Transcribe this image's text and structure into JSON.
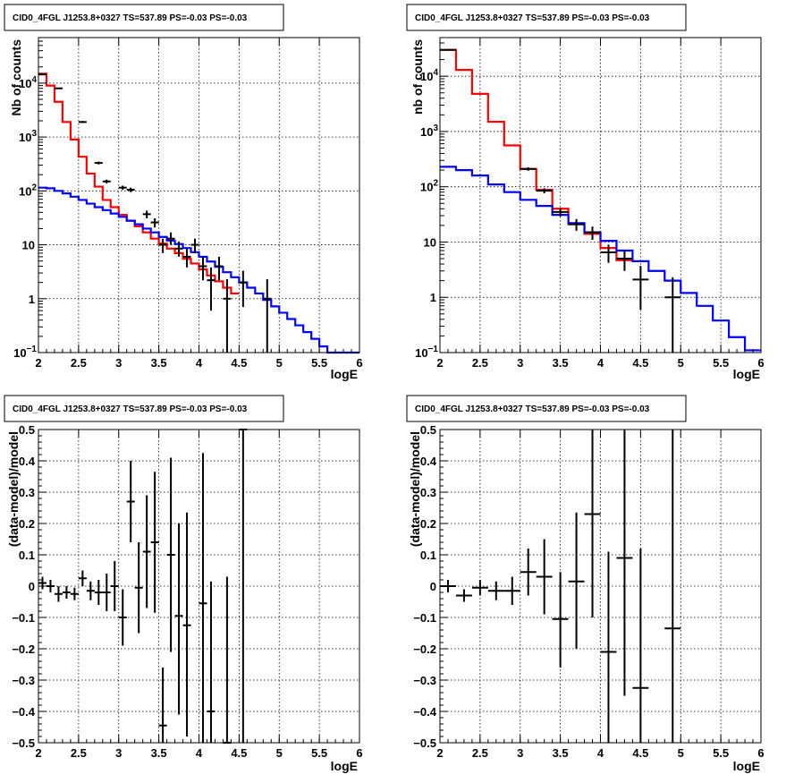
{
  "colors": {
    "total_model": "#ff0000",
    "source_model": "#0000ff",
    "data": "#000000"
  },
  "chart_data": [
    {
      "id": "p1",
      "type": "line",
      "title": "CID0_4FGL J1253.8+0327 TS=537.89 PS=-0.03 PS=-0.03",
      "xlabel": "logE",
      "ylabel": "Nb of counts",
      "xlim": [
        2,
        6
      ],
      "ylim": [
        0.1,
        70000
      ],
      "log_y": true,
      "grid": true,
      "xticks": [
        "2",
        "2.5",
        "3",
        "3.5",
        "4",
        "4.5",
        "5",
        "5.5",
        "6"
      ],
      "yticks": [
        {
          "value": 0.1,
          "base": "10",
          "exp": "−1"
        },
        {
          "value": 1,
          "label": "1"
        },
        {
          "value": 10,
          "label": "10"
        },
        {
          "value": 100,
          "base": "10",
          "exp": "2"
        },
        {
          "value": 1000,
          "base": "10",
          "exp": "3"
        },
        {
          "value": 10000,
          "base": "10",
          "exp": "4"
        }
      ],
      "series": [
        {
          "role": "total_model",
          "color": "#ff0000",
          "style": "step",
          "edges": [
            2.0,
            2.1,
            2.2,
            2.3,
            2.4,
            2.5,
            2.6,
            2.7,
            2.8,
            2.9,
            3.0,
            3.1,
            3.2,
            3.3,
            3.4,
            3.5,
            3.6,
            3.7,
            3.8,
            3.9,
            4.0,
            4.1,
            4.2,
            4.3,
            4.4,
            4.5
          ],
          "values": [
            15000,
            9000,
            4500,
            1900,
            900,
            430,
            210,
            120,
            68,
            50,
            36,
            28,
            22,
            17,
            13,
            10.5,
            8.5,
            7,
            5.5,
            4.5,
            3.5,
            2.7,
            2.1,
            1.6,
            1.25
          ]
        },
        {
          "role": "source_model",
          "color": "#0000ff",
          "style": "step",
          "edges": [
            2.0,
            2.1,
            2.2,
            2.3,
            2.4,
            2.5,
            2.6,
            2.7,
            2.8,
            2.9,
            3.0,
            3.1,
            3.2,
            3.3,
            3.4,
            3.5,
            3.6,
            3.7,
            3.8,
            3.9,
            4.0,
            4.1,
            4.2,
            4.3,
            4.4,
            4.5,
            4.6,
            4.7,
            4.8,
            4.9,
            5.0,
            5.1,
            5.2,
            5.3,
            5.4,
            5.5,
            5.6,
            5.7,
            5.8,
            5.9,
            6.0
          ],
          "values": [
            115,
            112,
            100,
            90,
            78,
            68,
            58,
            50,
            44,
            38,
            33,
            28,
            24,
            20,
            17,
            14,
            12,
            10.3,
            8.7,
            7.3,
            6.0,
            4.9,
            3.9,
            3.1,
            2.5,
            2.0,
            1.6,
            1.25,
            0.95,
            0.72,
            0.55,
            0.42,
            0.32,
            0.24,
            0.18,
            0.13,
            0.1,
            0.1,
            0.1,
            0.1
          ]
        }
      ],
      "points": [
        {
          "x": 2.05,
          "y": 14500,
          "xerr": 0.05,
          "lo": 14200,
          "hi": 14800
        },
        {
          "x": 2.25,
          "y": 8000,
          "xerr": 0.05,
          "lo": 7800,
          "hi": 8200
        },
        {
          "x": 2.55,
          "y": 1900,
          "xerr": 0.05,
          "lo": 1820,
          "hi": 1980
        },
        {
          "x": 2.75,
          "y": 330,
          "xerr": 0.05,
          "lo": 310,
          "hi": 350
        },
        {
          "x": 2.85,
          "y": 150,
          "xerr": 0.05,
          "lo": 138,
          "hi": 162
        },
        {
          "x": 3.05,
          "y": 115,
          "xerr": 0.05,
          "lo": 105,
          "hi": 125
        },
        {
          "x": 3.15,
          "y": 105,
          "xerr": 0.05,
          "lo": 95,
          "hi": 115
        },
        {
          "x": 3.35,
          "y": 37,
          "xerr": 0.05,
          "lo": 31,
          "hi": 43
        },
        {
          "x": 3.45,
          "y": 26,
          "xerr": 0.05,
          "lo": 21,
          "hi": 31
        },
        {
          "x": 3.55,
          "y": 10,
          "xerr": 0.05,
          "lo": 7,
          "hi": 13
        },
        {
          "x": 3.65,
          "y": 13,
          "xerr": 0.05,
          "lo": 10,
          "hi": 17
        },
        {
          "x": 3.75,
          "y": 8.5,
          "xerr": 0.05,
          "lo": 6,
          "hi": 11.5
        },
        {
          "x": 3.85,
          "y": 6,
          "xerr": 0.05,
          "lo": 3.8,
          "hi": 8.5
        },
        {
          "x": 3.95,
          "y": 10,
          "xerr": 0.05,
          "lo": 7,
          "hi": 13
        },
        {
          "x": 4.05,
          "y": 4,
          "xerr": 0.05,
          "lo": 2.2,
          "hi": 6
        },
        {
          "x": 4.15,
          "y": 2.2,
          "xerr": 0.05,
          "lo": 0.6,
          "hi": 3.8
        },
        {
          "x": 4.25,
          "y": 4,
          "xerr": 0.05,
          "lo": 2.2,
          "hi": 6
        },
        {
          "x": 4.35,
          "y": 1,
          "xerr": 0.05,
          "lo": 0.1,
          "hi": 2.3
        },
        {
          "x": 4.55,
          "y": 2,
          "xerr": 0.05,
          "lo": 0.7,
          "hi": 3.3
        },
        {
          "x": 4.85,
          "y": 1,
          "xerr": 0.05,
          "lo": 0.1,
          "hi": 2.3
        }
      ]
    },
    {
      "id": "p2",
      "type": "line",
      "title": "CID0_4FGL J1253.8+0327 TS=537.89 PS=-0.03 PS=-0.03",
      "xlabel": "logE",
      "ylabel": "nb of counts",
      "xlim": [
        2,
        6
      ],
      "ylim": [
        0.1,
        50000
      ],
      "log_y": true,
      "grid": true,
      "xticks": [
        "2",
        "2.5",
        "3",
        "3.5",
        "4",
        "4.5",
        "5",
        "5.5",
        "6"
      ],
      "yticks": [
        {
          "value": 0.1,
          "base": "10",
          "exp": "−1"
        },
        {
          "value": 1,
          "label": "1"
        },
        {
          "value": 10,
          "label": "10"
        },
        {
          "value": 100,
          "base": "10",
          "exp": "2"
        },
        {
          "value": 1000,
          "base": "10",
          "exp": "3"
        },
        {
          "value": 10000,
          "base": "10",
          "exp": "4"
        }
      ],
      "series": [
        {
          "role": "total_model",
          "color": "#ff0000",
          "style": "step",
          "edges": [
            2.0,
            2.2,
            2.4,
            2.6,
            2.8,
            3.0,
            3.2,
            3.4,
            3.6,
            3.8,
            4.0,
            4.2,
            4.4
          ],
          "values": [
            30000,
            13000,
            4800,
            1500,
            560,
            210,
            88,
            40,
            21,
            14,
            7.8,
            4.7
          ]
        },
        {
          "role": "source_model",
          "color": "#0000ff",
          "style": "step",
          "edges": [
            2.0,
            2.2,
            2.4,
            2.6,
            2.8,
            3.0,
            3.2,
            3.4,
            3.6,
            3.8,
            4.0,
            4.2,
            4.4,
            4.6,
            4.8,
            5.0,
            5.2,
            5.4,
            5.6,
            5.8,
            6.0
          ],
          "values": [
            230,
            200,
            160,
            110,
            80,
            58,
            45,
            31,
            22,
            15,
            10.5,
            7.0,
            4.5,
            3.0,
            2.0,
            1.2,
            0.7,
            0.38,
            0.19,
            0.11
          ]
        }
      ],
      "points": [
        {
          "x": 2.1,
          "y": 30000,
          "xerr": 0.1,
          "lo": 29600,
          "hi": 30400
        },
        {
          "x": 3.1,
          "y": 210,
          "xerr": 0.1,
          "lo": 195,
          "hi": 225
        },
        {
          "x": 3.3,
          "y": 85,
          "xerr": 0.1,
          "lo": 76,
          "hi": 94
        },
        {
          "x": 3.5,
          "y": 35,
          "xerr": 0.1,
          "lo": 29,
          "hi": 41
        },
        {
          "x": 3.7,
          "y": 21,
          "xerr": 0.1,
          "lo": 16,
          "hi": 26
        },
        {
          "x": 3.9,
          "y": 15,
          "xerr": 0.1,
          "lo": 11,
          "hi": 19
        },
        {
          "x": 4.1,
          "y": 6.5,
          "xerr": 0.1,
          "lo": 4.2,
          "hi": 9
        },
        {
          "x": 4.3,
          "y": 5,
          "xerr": 0.1,
          "lo": 3,
          "hi": 7
        },
        {
          "x": 4.5,
          "y": 2.1,
          "xerr": 0.1,
          "lo": 0.6,
          "hi": 3.7
        },
        {
          "x": 4.9,
          "y": 1,
          "xerr": 0.1,
          "lo": 0.1,
          "hi": 2.3
        }
      ]
    },
    {
      "id": "p3",
      "type": "scatter",
      "title": "CID0_4FGL J1253.8+0327 TS=537.89 PS=-0.03 PS=-0.03",
      "xlabel": "logE",
      "ylabel": "(data-model)/model",
      "xlim": [
        2,
        6
      ],
      "ylim": [
        -0.5,
        0.5
      ],
      "grid": true,
      "xticks": [
        "2",
        "2.5",
        "3",
        "3.5",
        "4",
        "4.5",
        "5",
        "5.5",
        "6"
      ],
      "yticks": [
        "−0.5",
        "−0.4",
        "−0.3",
        "−0.2",
        "−0.1",
        "0",
        "0.1",
        "0.2",
        "0.3",
        "0.4",
        "0.5"
      ],
      "points": [
        {
          "x": 2.05,
          "y": 0.01,
          "xerr": 0.05,
          "lo": -0.01,
          "hi": 0.03
        },
        {
          "x": 2.15,
          "y": 0.0,
          "xerr": 0.05,
          "lo": -0.02,
          "hi": 0.02
        },
        {
          "x": 2.25,
          "y": -0.025,
          "xerr": 0.05,
          "lo": -0.05,
          "hi": 0.0
        },
        {
          "x": 2.35,
          "y": -0.02,
          "xerr": 0.05,
          "lo": -0.04,
          "hi": 0.0
        },
        {
          "x": 2.45,
          "y": -0.025,
          "xerr": 0.05,
          "lo": -0.045,
          "hi": -0.005
        },
        {
          "x": 2.55,
          "y": 0.025,
          "xerr": 0.05,
          "lo": 0.0,
          "hi": 0.05
        },
        {
          "x": 2.65,
          "y": -0.015,
          "xerr": 0.05,
          "lo": -0.045,
          "hi": 0.015
        },
        {
          "x": 2.75,
          "y": -0.02,
          "xerr": 0.05,
          "lo": -0.06,
          "hi": 0.02
        },
        {
          "x": 2.85,
          "y": -0.02,
          "xerr": 0.05,
          "lo": -0.08,
          "hi": 0.04
        },
        {
          "x": 2.95,
          "y": 0.0,
          "xerr": 0.05,
          "lo": -0.08,
          "hi": 0.08
        },
        {
          "x": 3.05,
          "y": -0.1,
          "xerr": 0.05,
          "lo": -0.19,
          "hi": -0.01
        },
        {
          "x": 3.15,
          "y": 0.27,
          "xerr": 0.05,
          "lo": 0.14,
          "hi": 0.4
        },
        {
          "x": 3.25,
          "y": -0.005,
          "xerr": 0.05,
          "lo": -0.15,
          "hi": 0.14
        },
        {
          "x": 3.35,
          "y": 0.11,
          "xerr": 0.05,
          "lo": -0.07,
          "hi": 0.29
        },
        {
          "x": 3.45,
          "y": 0.14,
          "xerr": 0.05,
          "lo": -0.085,
          "hi": 0.365
        },
        {
          "x": 3.55,
          "y": -0.445,
          "xerr": 0.05,
          "lo": -0.72,
          "hi": -0.26
        },
        {
          "x": 3.65,
          "y": 0.1,
          "xerr": 0.05,
          "lo": -0.21,
          "hi": 0.41
        },
        {
          "x": 3.75,
          "y": -0.095,
          "xerr": 0.05,
          "lo": -0.41,
          "hi": 0.2
        },
        {
          "x": 3.85,
          "y": -0.125,
          "xerr": 0.05,
          "lo": -0.48,
          "hi": 0.235
        },
        {
          "x": 4.05,
          "y": -0.055,
          "xerr": 0.05,
          "lo": -0.5,
          "hi": 0.425
        },
        {
          "x": 4.15,
          "y": -0.4,
          "xerr": 0.05,
          "lo": -0.72,
          "hi": 0.015
        },
        {
          "x": 4.35,
          "y": -0.5,
          "xerr": 0.05,
          "lo": -0.8,
          "hi": 0.03
        },
        {
          "x": 4.55,
          "y": 0.5,
          "xerr": 0.05,
          "lo": -0.5,
          "hi": 0.5
        }
      ]
    },
    {
      "id": "p4",
      "type": "scatter",
      "title": "CID0_4FGL J1253.8+0327 TS=537.89 PS=-0.03 PS=-0.03",
      "xlabel": "logE",
      "ylabel": "(data-model)/model",
      "xlim": [
        2,
        6
      ],
      "ylim": [
        -0.5,
        0.5
      ],
      "grid": true,
      "xticks": [
        "2",
        "2.5",
        "3",
        "3.5",
        "4",
        "4.5",
        "5",
        "5.5",
        "6"
      ],
      "yticks": [
        "−0.5",
        "−0.4",
        "−0.3",
        "−0.2",
        "−0.1",
        "0",
        "0.1",
        "0.2",
        "0.3",
        "0.4",
        "0.5"
      ],
      "points": [
        {
          "x": 2.1,
          "y": 0.0,
          "xerr": 0.1,
          "lo": -0.02,
          "hi": 0.02
        },
        {
          "x": 2.3,
          "y": -0.03,
          "xerr": 0.1,
          "lo": -0.05,
          "hi": -0.01
        },
        {
          "x": 2.5,
          "y": -0.005,
          "xerr": 0.1,
          "lo": -0.03,
          "hi": 0.02
        },
        {
          "x": 2.7,
          "y": -0.015,
          "xerr": 0.1,
          "lo": -0.045,
          "hi": 0.015
        },
        {
          "x": 2.9,
          "y": -0.015,
          "xerr": 0.1,
          "lo": -0.06,
          "hi": 0.03
        },
        {
          "x": 3.1,
          "y": 0.045,
          "xerr": 0.1,
          "lo": -0.03,
          "hi": 0.12
        },
        {
          "x": 3.3,
          "y": 0.03,
          "xerr": 0.1,
          "lo": -0.09,
          "hi": 0.15
        },
        {
          "x": 3.5,
          "y": -0.105,
          "xerr": 0.1,
          "lo": -0.26,
          "hi": 0.045
        },
        {
          "x": 3.7,
          "y": 0.015,
          "xerr": 0.1,
          "lo": -0.2,
          "hi": 0.235
        },
        {
          "x": 3.9,
          "y": 0.23,
          "xerr": 0.1,
          "lo": -0.1,
          "hi": 0.5
        },
        {
          "x": 4.1,
          "y": -0.21,
          "xerr": 0.1,
          "lo": -0.5,
          "hi": 0.11
        },
        {
          "x": 4.3,
          "y": 0.09,
          "xerr": 0.1,
          "lo": -0.35,
          "hi": 0.5
        },
        {
          "x": 4.5,
          "y": -0.325,
          "xerr": 0.1,
          "lo": -0.5,
          "hi": 0.12
        },
        {
          "x": 4.9,
          "y": -0.135,
          "xerr": 0.1,
          "lo": -0.5,
          "hi": 0.5
        }
      ]
    }
  ]
}
